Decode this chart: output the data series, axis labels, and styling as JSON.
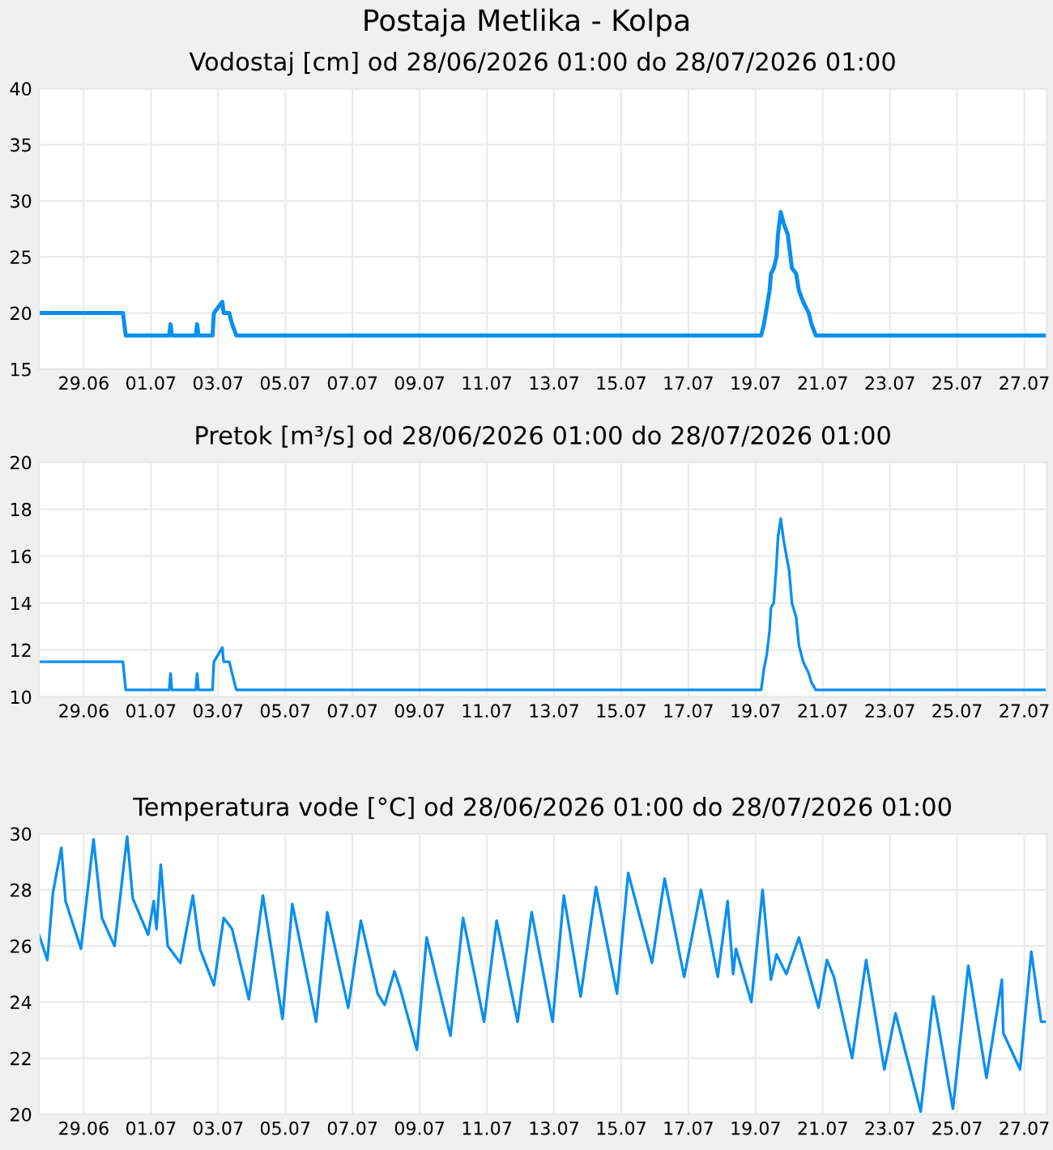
{
  "chart_data": [
    {
      "type": "line",
      "title": "Postaja Metlika - Kolpa",
      "subtitle": "Vodostaj [cm] od 28/06/2026 01:00 do 28/07/2026 01:00",
      "grid": true,
      "legend": false,
      "marker": "none",
      "line_style": "solid",
      "xlim": [
        "2026-06-28T01:00",
        "2026-07-28T01:00"
      ],
      "xticks": [
        {
          "value": "2026-06-29T09:00",
          "label": "29.06"
        },
        {
          "value": "2026-07-01T09:00",
          "label": "01.07"
        },
        {
          "value": "2026-07-03T09:00",
          "label": "03.07"
        },
        {
          "value": "2026-07-05T09:00",
          "label": "05.07"
        },
        {
          "value": "2026-07-07T09:00",
          "label": "07.07"
        },
        {
          "value": "2026-07-09T09:00",
          "label": "09.07"
        },
        {
          "value": "2026-07-11T09:00",
          "label": "11.07"
        },
        {
          "value": "2026-07-13T09:00",
          "label": "13.07"
        },
        {
          "value": "2026-07-15T09:00",
          "label": "15.07"
        },
        {
          "value": "2026-07-17T09:00",
          "label": "17.07"
        },
        {
          "value": "2026-07-19T09:00",
          "label": "19.07"
        },
        {
          "value": "2026-07-21T09:00",
          "label": "21.07"
        },
        {
          "value": "2026-07-23T09:00",
          "label": "23.07"
        },
        {
          "value": "2026-07-25T09:00",
          "label": "25.07"
        },
        {
          "value": "2026-07-27T09:00",
          "label": "27.07"
        }
      ],
      "ylim": [
        15,
        40
      ],
      "yticks": [
        15,
        20,
        25,
        30,
        35,
        40
      ],
      "series": [
        {
          "color": "#0a8ff0",
          "x": [
            "2026-06-28T01:00",
            "2026-06-30T13:00",
            "2026-06-30T14:00",
            "2026-06-30T15:00",
            "2026-07-01T22:00",
            "2026-07-01T23:00",
            "2026-07-02T00:00",
            "2026-07-02T17:00",
            "2026-07-02T18:00",
            "2026-07-02T19:00",
            "2026-07-03T05:00",
            "2026-07-03T06:00",
            "2026-07-03T12:00",
            "2026-07-03T13:00",
            "2026-07-03T17:00",
            "2026-07-03T19:00",
            "2026-07-03T22:00",
            "2026-07-19T13:00",
            "2026-07-19T15:00",
            "2026-07-19T17:00",
            "2026-07-19T19:00",
            "2026-07-19T20:00",
            "2026-07-19T22:00",
            "2026-07-20T00:00",
            "2026-07-20T01:00",
            "2026-07-20T03:00",
            "2026-07-20T05:00",
            "2026-07-20T08:00",
            "2026-07-20T09:00",
            "2026-07-20T11:00",
            "2026-07-20T14:00",
            "2026-07-20T16:00",
            "2026-07-20T19:00",
            "2026-07-20T23:00",
            "2026-07-21T01:00",
            "2026-07-21T04:00",
            "2026-07-28T01:00"
          ],
          "values": [
            20,
            20,
            19,
            18,
            18,
            19,
            18,
            18,
            19,
            18,
            18,
            20,
            21,
            20,
            20,
            19,
            18,
            18,
            19,
            20.5,
            22,
            23.5,
            24,
            25,
            27,
            29,
            28,
            27,
            26,
            24,
            23.5,
            22,
            21,
            20,
            19,
            18,
            18
          ]
        }
      ]
    },
    {
      "type": "line",
      "title": "Pretok [m³/s] od 28/06/2026 01:00 do 28/07/2026 01:00",
      "grid": true,
      "legend": false,
      "marker": "none",
      "line_style": "solid",
      "xlim": [
        "2026-06-28T01:00",
        "2026-07-28T01:00"
      ],
      "xticks": [
        {
          "value": "2026-06-29T09:00",
          "label": "29.06"
        },
        {
          "value": "2026-07-01T09:00",
          "label": "01.07"
        },
        {
          "value": "2026-07-03T09:00",
          "label": "03.07"
        },
        {
          "value": "2026-07-05T09:00",
          "label": "05.07"
        },
        {
          "value": "2026-07-07T09:00",
          "label": "07.07"
        },
        {
          "value": "2026-07-09T09:00",
          "label": "09.07"
        },
        {
          "value": "2026-07-11T09:00",
          "label": "11.07"
        },
        {
          "value": "2026-07-13T09:00",
          "label": "13.07"
        },
        {
          "value": "2026-07-15T09:00",
          "label": "15.07"
        },
        {
          "value": "2026-07-17T09:00",
          "label": "17.07"
        },
        {
          "value": "2026-07-19T09:00",
          "label": "19.07"
        },
        {
          "value": "2026-07-21T09:00",
          "label": "21.07"
        },
        {
          "value": "2026-07-23T09:00",
          "label": "23.07"
        },
        {
          "value": "2026-07-25T09:00",
          "label": "25.07"
        },
        {
          "value": "2026-07-27T09:00",
          "label": "27.07"
        }
      ],
      "ylim": [
        10,
        20
      ],
      "yticks": [
        10,
        12,
        14,
        16,
        18,
        20
      ],
      "series": [
        {
          "color": "#0a8ff0",
          "x": [
            "2026-06-28T01:00",
            "2026-06-30T13:00",
            "2026-06-30T14:00",
            "2026-06-30T15:00",
            "2026-07-01T22:00",
            "2026-07-01T23:00",
            "2026-07-02T00:00",
            "2026-07-02T17:00",
            "2026-07-02T18:00",
            "2026-07-02T19:00",
            "2026-07-03T05:00",
            "2026-07-03T06:00",
            "2026-07-03T12:00",
            "2026-07-03T13:00",
            "2026-07-03T17:00",
            "2026-07-03T19:00",
            "2026-07-03T22:00",
            "2026-07-19T13:00",
            "2026-07-19T15:00",
            "2026-07-19T17:00",
            "2026-07-19T19:00",
            "2026-07-19T20:00",
            "2026-07-19T22:00",
            "2026-07-20T00:00",
            "2026-07-20T01:00",
            "2026-07-20T03:00",
            "2026-07-20T05:00",
            "2026-07-20T08:00",
            "2026-07-20T09:00",
            "2026-07-20T11:00",
            "2026-07-20T14:00",
            "2026-07-20T16:00",
            "2026-07-20T19:00",
            "2026-07-20T23:00",
            "2026-07-21T01:00",
            "2026-07-21T04:00",
            "2026-07-28T01:00"
          ],
          "values": [
            11.5,
            11.5,
            10.9,
            10.3,
            10.3,
            11,
            10.3,
            10.3,
            11,
            10.3,
            10.3,
            11.5,
            12.1,
            11.5,
            11.5,
            11,
            10.3,
            10.3,
            11.2,
            11.8,
            12.8,
            13.8,
            14,
            15.7,
            16.8,
            17.6,
            16.7,
            15.7,
            15.4,
            14,
            13.4,
            12.2,
            11.5,
            11,
            10.6,
            10.3,
            10.3
          ]
        }
      ]
    },
    {
      "type": "line",
      "title": "Temperatura vode [°C] od 28/06/2026 01:00 do 28/07/2026 01:00",
      "grid": true,
      "legend": false,
      "marker": "none",
      "line_style": "solid",
      "xlim": [
        "2026-06-28T01:00",
        "2026-07-28T01:00"
      ],
      "xticks": [
        {
          "value": "2026-06-29T09:00",
          "label": "29.06"
        },
        {
          "value": "2026-07-01T09:00",
          "label": "01.07"
        },
        {
          "value": "2026-07-03T09:00",
          "label": "03.07"
        },
        {
          "value": "2026-07-05T09:00",
          "label": "05.07"
        },
        {
          "value": "2026-07-07T09:00",
          "label": "07.07"
        },
        {
          "value": "2026-07-09T09:00",
          "label": "09.07"
        },
        {
          "value": "2026-07-11T09:00",
          "label": "11.07"
        },
        {
          "value": "2026-07-13T09:00",
          "label": "13.07"
        },
        {
          "value": "2026-07-15T09:00",
          "label": "15.07"
        },
        {
          "value": "2026-07-17T09:00",
          "label": "17.07"
        },
        {
          "value": "2026-07-19T09:00",
          "label": "19.07"
        },
        {
          "value": "2026-07-21T09:00",
          "label": "21.07"
        },
        {
          "value": "2026-07-23T09:00",
          "label": "23.07"
        },
        {
          "value": "2026-07-25T09:00",
          "label": "25.07"
        },
        {
          "value": "2026-07-27T09:00",
          "label": "27.07"
        }
      ],
      "ylim": [
        20,
        30
      ],
      "yticks": [
        20,
        22,
        24,
        26,
        28,
        30
      ],
      "series": [
        {
          "color": "#0a8ff0",
          "x": [
            "2026-06-28T01:00",
            "2026-06-28T07:00",
            "2026-06-28T11:00",
            "2026-06-28T17:00",
            "2026-06-28T20:00",
            "2026-06-29T07:00",
            "2026-06-29T16:00",
            "2026-06-29T22:00",
            "2026-06-30T07:00",
            "2026-06-30T16:00",
            "2026-06-30T20:00",
            "2026-07-01T07:00",
            "2026-07-01T11:00",
            "2026-07-01T13:00",
            "2026-07-01T16:00",
            "2026-07-01T21:00",
            "2026-07-02T06:00",
            "2026-07-02T15:00",
            "2026-07-02T20:00",
            "2026-07-03T06:00",
            "2026-07-03T13:00",
            "2026-07-03T19:00",
            "2026-07-04T07:00",
            "2026-07-04T17:00",
            "2026-07-05T07:00",
            "2026-07-05T14:00",
            "2026-07-06T07:00",
            "2026-07-06T15:00",
            "2026-07-07T06:00",
            "2026-07-07T15:00",
            "2026-07-08T03:00",
            "2026-07-08T08:00",
            "2026-07-08T15:00",
            "2026-07-08T19:00",
            "2026-07-09T07:00",
            "2026-07-09T14:00",
            "2026-07-10T07:00",
            "2026-07-10T16:00",
            "2026-07-11T07:00",
            "2026-07-11T16:00",
            "2026-07-12T07:00",
            "2026-07-12T17:00",
            "2026-07-13T08:00",
            "2026-07-13T16:00",
            "2026-07-14T04:00",
            "2026-07-14T15:00",
            "2026-07-15T06:00",
            "2026-07-15T14:00",
            "2026-07-16T07:00",
            "2026-07-16T16:00",
            "2026-07-17T06:00",
            "2026-07-17T18:00",
            "2026-07-18T06:00",
            "2026-07-18T13:00",
            "2026-07-18T17:00",
            "2026-07-18T19:00",
            "2026-07-19T06:00",
            "2026-07-19T14:00",
            "2026-07-19T20:00",
            "2026-07-20T00:00",
            "2026-07-20T07:00",
            "2026-07-20T16:00",
            "2026-07-21T06:00",
            "2026-07-21T12:00",
            "2026-07-21T17:00",
            "2026-07-22T06:00",
            "2026-07-22T16:00",
            "2026-07-23T05:00",
            "2026-07-23T13:00",
            "2026-07-24T07:00",
            "2026-07-24T16:00",
            "2026-07-25T06:00",
            "2026-07-25T17:00",
            "2026-07-26T06:00",
            "2026-07-26T17:00",
            "2026-07-26T18:00",
            "2026-07-27T06:00",
            "2026-07-27T14:00",
            "2026-07-27T21:00",
            "2026-07-28T01:00"
          ],
          "values": [
            26.4,
            25.5,
            27.9,
            29.5,
            27.6,
            25.9,
            29.8,
            27.0,
            26.0,
            29.9,
            27.7,
            26.4,
            27.6,
            26.6,
            28.9,
            26.0,
            25.4,
            27.8,
            25.9,
            24.6,
            27.0,
            26.6,
            24.1,
            27.8,
            23.4,
            27.5,
            23.3,
            27.2,
            23.8,
            26.9,
            24.3,
            23.9,
            25.1,
            24.5,
            22.3,
            26.3,
            22.8,
            27.0,
            23.3,
            26.9,
            23.3,
            27.2,
            23.3,
            27.8,
            24.2,
            28.1,
            24.3,
            28.6,
            25.4,
            28.4,
            24.9,
            28.0,
            24.9,
            27.6,
            25.0,
            25.9,
            24.0,
            28.0,
            24.8,
            25.7,
            25.0,
            26.3,
            23.8,
            25.5,
            24.9,
            22.0,
            25.5,
            21.6,
            23.6,
            20.1,
            24.2,
            20.2,
            25.3,
            21.3,
            24.8,
            22.9,
            21.6,
            25.8,
            23.3,
            23.3
          ]
        }
      ]
    }
  ]
}
